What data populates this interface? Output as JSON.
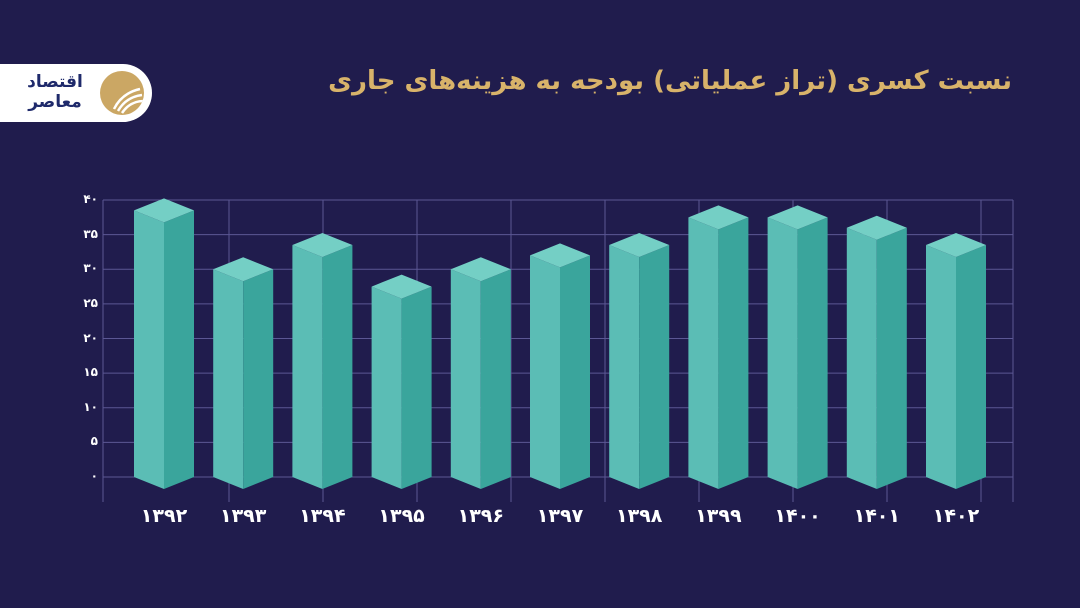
{
  "brand": {
    "logo_text": "اقتصاد معاصر",
    "logo_icon": "brand-circle-icon",
    "colors": {
      "background": "#201c4d",
      "title": "#d8b36a",
      "bar_front_left": "#5bbdb5",
      "bar_front_right": "#3aa59c",
      "bar_top": "#74cfc5",
      "grid": "#5b5794",
      "logo_gold": "#cba764",
      "logo_navy": "#1f2a6b"
    }
  },
  "header": {
    "title": "نسبت کسری (تراز عملیاتی) بودجه به هزینه‌های جاری"
  },
  "axis": {
    "y_ticks": [
      "۰",
      "۵",
      "۱۰",
      "۱۵",
      "۲۰",
      "۲۵",
      "۳۰",
      "۳۵",
      "۴۰"
    ],
    "x_ticks": [
      "۱۳۹۲",
      "۱۳۹۳",
      "۱۳۹۴",
      "۱۳۹۵",
      "۱۳۹۶",
      "۱۳۹۷",
      "۱۳۹۸",
      "۱۳۹۹",
      "۱۴۰۰",
      "۱۴۰۱",
      "۱۴۰۲"
    ]
  },
  "chart_data": {
    "type": "bar",
    "title": "نسبت کسری (تراز عملیاتی) بودجه به هزینه‌های جاری",
    "xlabel": "",
    "ylabel": "",
    "categories": [
      "1392",
      "1393",
      "1394",
      "1395",
      "1396",
      "1397",
      "1398",
      "1399",
      "1400",
      "1401",
      "1402"
    ],
    "category_labels": [
      "۱۳۹۲",
      "۱۳۹۳",
      "۱۳۹۴",
      "۱۳۹۵",
      "۱۳۹۶",
      "۱۳۹۷",
      "۱۳۹۸",
      "۱۳۹۹",
      "۱۴۰۰",
      "۱۴۰۱",
      "۱۴۰۲"
    ],
    "values": [
      38.5,
      30,
      33.5,
      27.5,
      30,
      32,
      33.5,
      37.5,
      37.5,
      36,
      33.5
    ],
    "ylim": [
      0,
      40
    ],
    "yticks": [
      0,
      5,
      10,
      15,
      20,
      25,
      30,
      35,
      40
    ],
    "grid": true,
    "legend": null,
    "style": "3d-isometric-bars"
  }
}
